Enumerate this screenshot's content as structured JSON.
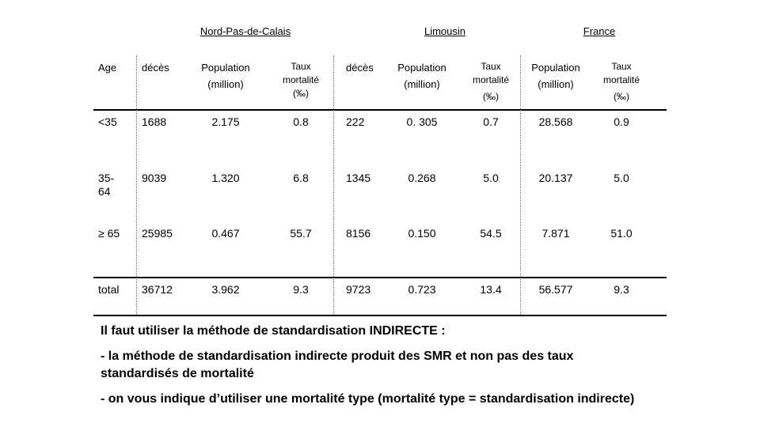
{
  "regions": [
    "Nord-Pas-de-Calais",
    "Limousin",
    "France"
  ],
  "headers": {
    "age": "Age",
    "deces": "décès",
    "population": [
      "Population",
      "(million)"
    ],
    "taux": [
      "Taux",
      "mortalité",
      "(‰)"
    ]
  },
  "rows": [
    {
      "age": "<35",
      "npc_deces": "1688",
      "npc_pop": "2.175",
      "npc_taux": "0.8",
      "lim_deces": "222",
      "lim_pop": "0. 305",
      "lim_taux": "0.7",
      "fr_pop": "28.568",
      "fr_taux": "0.9"
    },
    {
      "age": "35-64",
      "npc_deces": "9039",
      "npc_pop": "1.320",
      "npc_taux": "6.8",
      "lim_deces": "1345",
      "lim_pop": "0.268",
      "lim_taux": "5.0",
      "fr_pop": "20.137",
      "fr_taux": "5.0"
    },
    {
      "age": "≥ 65",
      "npc_deces": "25985",
      "npc_pop": "0.467",
      "npc_taux": "55.7",
      "lim_deces": "8156",
      "lim_pop": "0.150",
      "lim_taux": "54.5",
      "fr_pop": "7.871",
      "fr_taux": "51.0"
    },
    {
      "age": "total",
      "npc_deces": "36712",
      "npc_pop": "3.962",
      "npc_taux": "9.3",
      "lim_deces": "9723",
      "lim_pop": "0.723",
      "lim_taux": "13.4",
      "fr_pop": "56.577",
      "fr_taux": "9.3"
    }
  ],
  "notes": [
    "Il faut utiliser la méthode de standardisation INDIRECTE :",
    "- la méthode de standardisation indirecte produit des SMR et non pas des taux standardisés de mortalité",
    "- on vous indique d’utiliser une mortalité type (mortalité type = standardisation indirecte)"
  ]
}
